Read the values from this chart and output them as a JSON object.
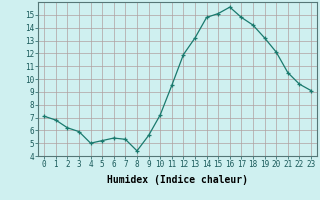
{
  "x": [
    0,
    1,
    2,
    3,
    4,
    5,
    6,
    7,
    8,
    9,
    10,
    11,
    12,
    13,
    14,
    15,
    16,
    17,
    18,
    19,
    20,
    21,
    22,
    23
  ],
  "y": [
    7.1,
    6.8,
    6.2,
    5.9,
    5.0,
    5.2,
    5.4,
    5.3,
    4.4,
    5.6,
    7.2,
    9.5,
    11.9,
    13.2,
    14.8,
    15.1,
    15.6,
    14.8,
    14.2,
    13.2,
    12.1,
    10.5,
    9.6,
    9.1
  ],
  "line_color": "#1a7a6e",
  "marker": "+",
  "marker_size": 3,
  "bg_color": "#cff0f0",
  "grid_color": "#b0a0a0",
  "xlabel": "Humidex (Indice chaleur)",
  "ylim": [
    4,
    16
  ],
  "xlim": [
    -0.5,
    23.5
  ],
  "yticks": [
    4,
    5,
    6,
    7,
    8,
    9,
    10,
    11,
    12,
    13,
    14,
    15
  ],
  "xticks": [
    0,
    1,
    2,
    3,
    4,
    5,
    6,
    7,
    8,
    9,
    10,
    11,
    12,
    13,
    14,
    15,
    16,
    17,
    18,
    19,
    20,
    21,
    22,
    23
  ],
  "tick_fontsize": 5.5,
  "xlabel_fontsize": 7.0,
  "linewidth": 0.9,
  "markeredgewidth": 0.9
}
